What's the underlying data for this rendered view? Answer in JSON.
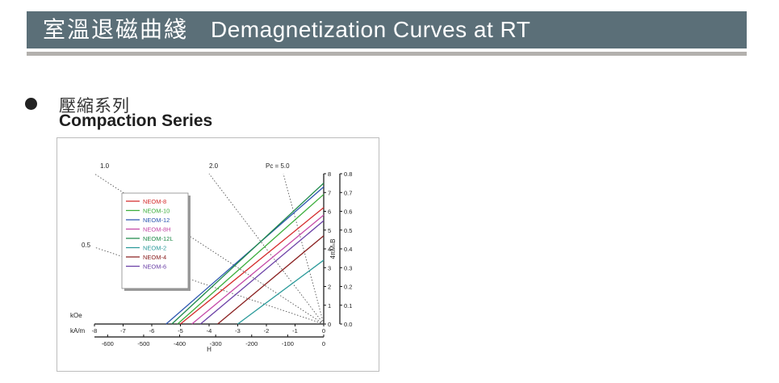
{
  "header": {
    "title_cjk": "室溫退磁曲綫",
    "title_en": "Demagnetization  Curves at RT"
  },
  "section": {
    "title_cjk": "壓縮系列",
    "title_en": "Compaction Series"
  },
  "chart_data": {
    "type": "line",
    "title": "",
    "x_axis_koe": {
      "unit_label": "kOe",
      "range": [
        -8,
        0
      ],
      "ticks": [
        "-8",
        "-7",
        "-6",
        "-5",
        "-4",
        "-3",
        "-2",
        "-1",
        "0"
      ]
    },
    "x_axis_kam": {
      "unit_label": "kA/m",
      "label": "H",
      "range": [
        -636.6,
        0
      ],
      "ticks": [
        "-600",
        "-500",
        "-400",
        "-300",
        "-200",
        "-100",
        "0"
      ]
    },
    "y_axis_kg": {
      "range": [
        0,
        8
      ],
      "ticks": [
        "0",
        "1",
        "2",
        "3",
        "4",
        "5",
        "6",
        "7",
        "8"
      ]
    },
    "y_axis_t": {
      "label": "4πMₛB",
      "range": [
        0,
        0.8
      ],
      "ticks": [
        "0.0",
        "0.1",
        "0.2",
        "0.3",
        "0.4",
        "0.5",
        "0.6",
        "0.7",
        "0.8"
      ]
    },
    "load_lines": [
      {
        "label": "1.0",
        "pc": 1.0
      },
      {
        "label": "2.0",
        "pc": 2.0
      },
      {
        "label": "Pc = 5.0",
        "pc": 5.0
      },
      {
        "label": "0.5",
        "pc": 0.5
      }
    ],
    "legend_position": "top-left",
    "grid": false,
    "series": [
      {
        "name": "NEOM-8",
        "color": "#d42a2a",
        "br_kg": 6.2,
        "hc_koe": -5.0
      },
      {
        "name": "NEOM-10",
        "color": "#3cae3c",
        "br_kg": 6.9,
        "hc_koe": -5.1
      },
      {
        "name": "NEOM-12",
        "color": "#2b55b0",
        "br_kg": 7.3,
        "hc_koe": -5.5
      },
      {
        "name": "NEOM-8H",
        "color": "#c447a6",
        "br_kg": 5.8,
        "hc_koe": -4.6
      },
      {
        "name": "NEOM-12L",
        "color": "#1f8a4a",
        "br_kg": 7.5,
        "hc_koe": -5.3
      },
      {
        "name": "NEOM-2",
        "color": "#2a9a9a",
        "br_kg": 3.4,
        "hc_koe": -3.0
      },
      {
        "name": "NEOM-4",
        "color": "#8a2020",
        "br_kg": 4.7,
        "hc_koe": -3.7
      },
      {
        "name": "NEOM-6",
        "color": "#6a3fa6",
        "br_kg": 5.5,
        "hc_koe": -4.3
      }
    ]
  }
}
